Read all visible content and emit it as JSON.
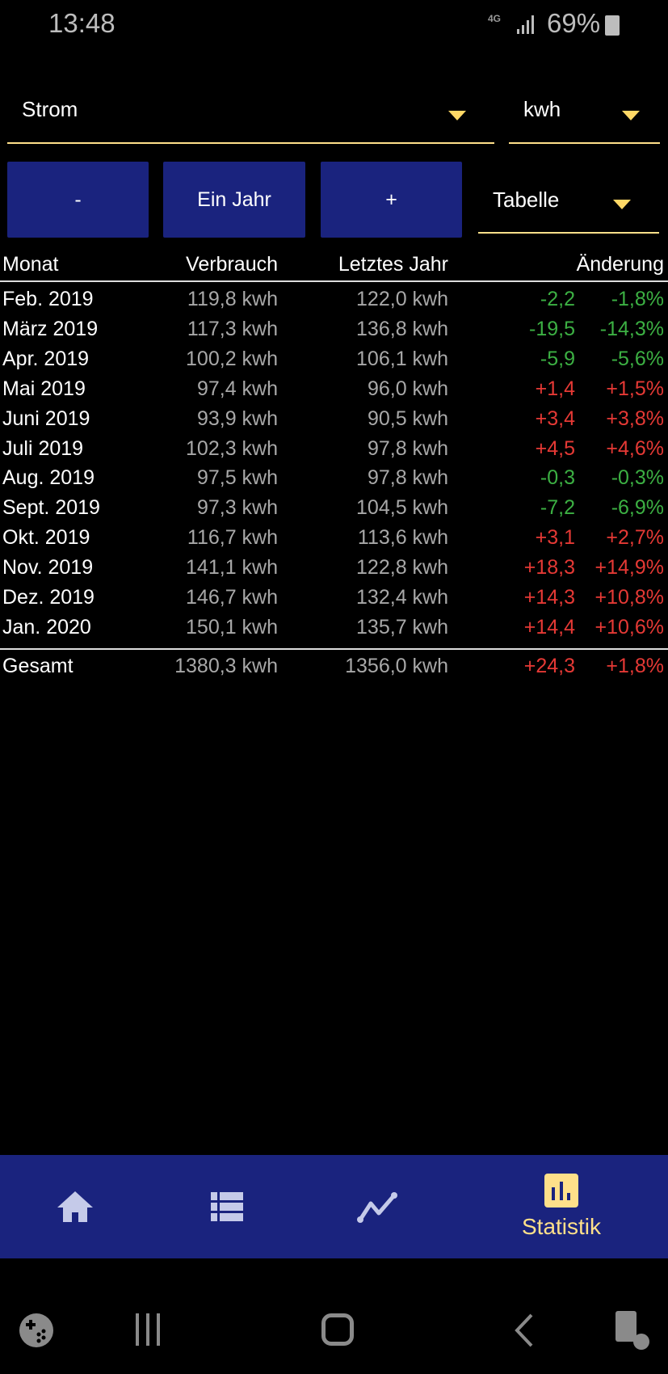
{
  "status_bar": {
    "time": "13:48",
    "network": "4G",
    "battery": "69%"
  },
  "filters": {
    "category": "Strom",
    "unit": "kwh",
    "view": "Tabelle"
  },
  "period": {
    "minus_label": "-",
    "period_label": "Ein Jahr",
    "plus_label": "+"
  },
  "table": {
    "headers": [
      "Monat",
      "Verbrauch",
      "Letztes Jahr",
      "Änderung"
    ],
    "rows": [
      {
        "month": "Feb. 2019",
        "usage": "119,8 kwh",
        "last_year": "122,0 kwh",
        "diff": "-2,2",
        "pct": "-1,8%",
        "trend": "down"
      },
      {
        "month": "März 2019",
        "usage": "117,3 kwh",
        "last_year": "136,8 kwh",
        "diff": "-19,5",
        "pct": "-14,3%",
        "trend": "down"
      },
      {
        "month": "Apr. 2019",
        "usage": "100,2 kwh",
        "last_year": "106,1 kwh",
        "diff": "-5,9",
        "pct": "-5,6%",
        "trend": "down"
      },
      {
        "month": "Mai 2019",
        "usage": "97,4 kwh",
        "last_year": "96,0 kwh",
        "diff": "+1,4",
        "pct": "+1,5%",
        "trend": "up"
      },
      {
        "month": "Juni 2019",
        "usage": "93,9 kwh",
        "last_year": "90,5 kwh",
        "diff": "+3,4",
        "pct": "+3,8%",
        "trend": "up"
      },
      {
        "month": "Juli 2019",
        "usage": "102,3 kwh",
        "last_year": "97,8 kwh",
        "diff": "+4,5",
        "pct": "+4,6%",
        "trend": "up"
      },
      {
        "month": "Aug. 2019",
        "usage": "97,5 kwh",
        "last_year": "97,8 kwh",
        "diff": "-0,3",
        "pct": "-0,3%",
        "trend": "down"
      },
      {
        "month": "Sept. 2019",
        "usage": "97,3 kwh",
        "last_year": "104,5 kwh",
        "diff": "-7,2",
        "pct": "-6,9%",
        "trend": "down"
      },
      {
        "month": "Okt. 2019",
        "usage": "116,7 kwh",
        "last_year": "113,6 kwh",
        "diff": "+3,1",
        "pct": "+2,7%",
        "trend": "up"
      },
      {
        "month": "Nov. 2019",
        "usage": "141,1 kwh",
        "last_year": "122,8 kwh",
        "diff": "+18,3",
        "pct": "+14,9%",
        "trend": "up"
      },
      {
        "month": "Dez. 2019",
        "usage": "146,7 kwh",
        "last_year": "132,4 kwh",
        "diff": "+14,3",
        "pct": "+10,8%",
        "trend": "up"
      },
      {
        "month": "Jan. 2020",
        "usage": "150,1 kwh",
        "last_year": "135,7 kwh",
        "diff": "+14,4",
        "pct": "+10,6%",
        "trend": "up"
      }
    ],
    "total": {
      "month": "Gesamt",
      "usage": "1380,3 kwh",
      "last_year": "1356,0 kwh",
      "diff": "+24,3",
      "pct": "+1,8%",
      "trend": "up"
    }
  },
  "colors": {
    "accent": "#ffd866",
    "bar": "#1a237e",
    "increase": "#e53935",
    "decrease": "#3cb043"
  },
  "bottom_nav": {
    "items": [
      {
        "icon": "home-icon"
      },
      {
        "icon": "list-icon"
      },
      {
        "icon": "line-chart-icon"
      },
      {
        "icon": "bar-chart-icon",
        "label": "Statistik",
        "active": true
      }
    ]
  }
}
